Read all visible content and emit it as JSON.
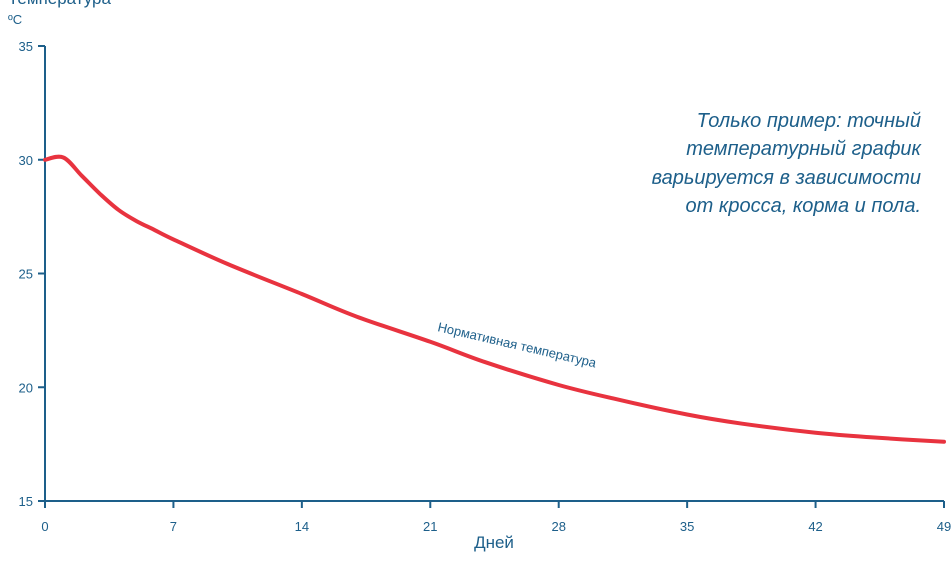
{
  "chart_data": {
    "type": "line",
    "ylabel": "Температура",
    "unit_label": "ºC",
    "xlabel": "Дней",
    "xlim": [
      0,
      49
    ],
    "ylim": [
      15,
      35
    ],
    "x_ticks": [
      0,
      7,
      14,
      21,
      28,
      35,
      42,
      49
    ],
    "y_ticks": [
      15,
      20,
      25,
      30,
      35
    ],
    "grid": false,
    "line_color": "#e8333f",
    "axis_color": "#1d5f8a",
    "text_color": "#1d5f8a",
    "series": [
      {
        "name": "Нормативная температура",
        "x": [
          0,
          1,
          2,
          3,
          4,
          5,
          6,
          7,
          10,
          14,
          17,
          21,
          24,
          28,
          31,
          35,
          38,
          42,
          45,
          49
        ],
        "y": [
          30.0,
          30.1,
          29.3,
          28.5,
          27.8,
          27.3,
          26.9,
          26.5,
          25.4,
          24.1,
          23.1,
          22.0,
          21.1,
          20.1,
          19.5,
          18.8,
          18.4,
          18.0,
          17.8,
          17.6
        ]
      }
    ],
    "annotation": [
      "Только пример: точный",
      "температурный график",
      "варьируется в зависимости",
      "от кросса, корма и пола."
    ]
  }
}
